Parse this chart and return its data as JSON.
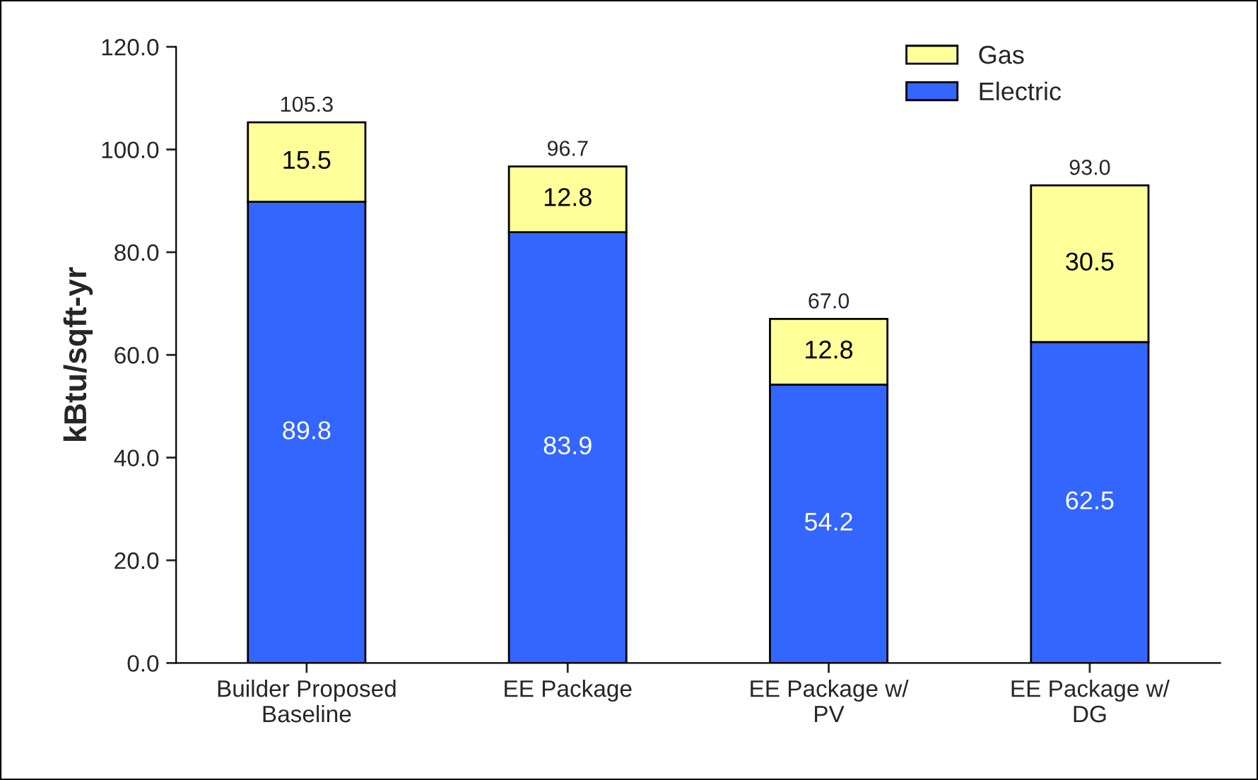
{
  "chart_data": {
    "type": "bar",
    "stacked": true,
    "ylabel": "kBtu/sqft-yr",
    "categories": [
      "Builder Proposed\nBaseline",
      "EE Package",
      "EE Package w/\nPV",
      "EE Package w/\nDG"
    ],
    "series": [
      {
        "name": "Electric",
        "color": "#3366ff",
        "values": [
          89.8,
          83.9,
          54.2,
          62.5
        ]
      },
      {
        "name": "Gas",
        "color": "#ffff99",
        "values": [
          15.5,
          12.8,
          12.8,
          30.5
        ]
      }
    ],
    "totals": [
      "105.3",
      "96.7",
      "67.0",
      "93.0"
    ],
    "data_labels": true,
    "ylim": [
      0,
      120
    ],
    "yticks": [
      {
        "value": 0,
        "label": "0.0"
      },
      {
        "value": 20,
        "label": "20.0"
      },
      {
        "value": 40,
        "label": "40.0"
      },
      {
        "value": 60,
        "label": "60.0"
      },
      {
        "value": 80,
        "label": "80.0"
      },
      {
        "value": 100,
        "label": "100.0"
      },
      {
        "value": 120,
        "label": "120.0"
      }
    ],
    "grid": false,
    "legend": "top right"
  }
}
